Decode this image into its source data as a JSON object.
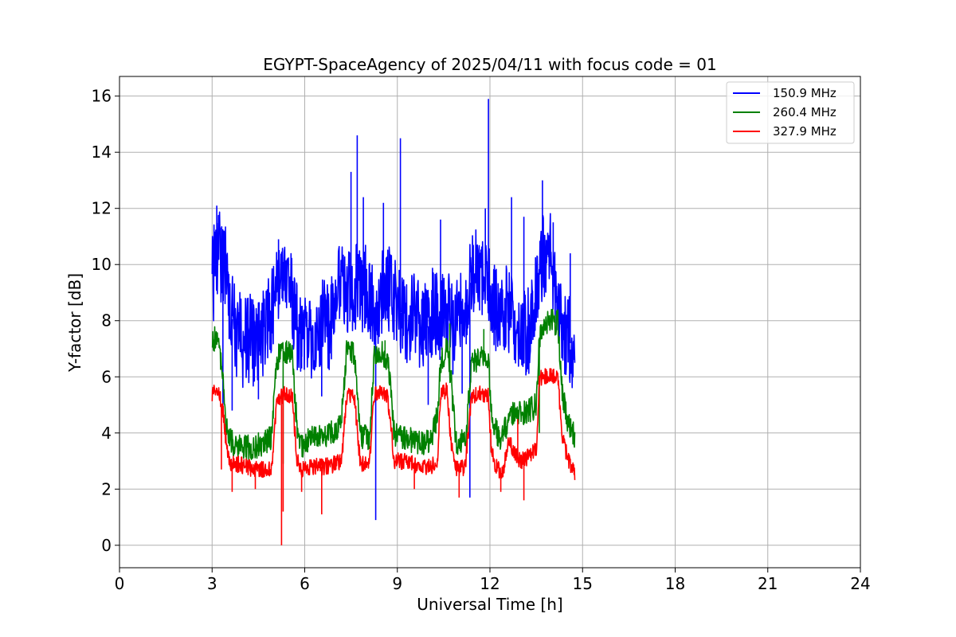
{
  "chart_data": {
    "type": "line",
    "title": "EGYPT-SpaceAgency of 2025/04/11 with focus code = 01",
    "xlabel": "Universal Time [h]",
    "ylabel": "Y-factor [dB]",
    "xlim": [
      0,
      24
    ],
    "ylim": [
      -0.8,
      16.7
    ],
    "xticks": [
      0,
      3,
      6,
      9,
      12,
      15,
      18,
      21,
      24
    ],
    "yticks": [
      0,
      2,
      4,
      6,
      8,
      10,
      12,
      14,
      16
    ],
    "grid": true,
    "legend_position": "top-right",
    "series": [
      {
        "name": "150.9 MHz",
        "color": "#0000ff",
        "points": [
          [
            3.0,
            10.2
          ],
          [
            3.05,
            9.5
          ],
          [
            3.1,
            11.2
          ],
          [
            3.15,
            10.0
          ],
          [
            3.2,
            10.6
          ],
          [
            3.3,
            9.8
          ],
          [
            3.4,
            10.3
          ],
          [
            3.5,
            8.8
          ],
          [
            3.6,
            8.3
          ],
          [
            3.7,
            7.8
          ],
          [
            3.8,
            7.4
          ],
          [
            3.9,
            7.6
          ],
          [
            4.0,
            7.2
          ],
          [
            4.2,
            7.4
          ],
          [
            4.4,
            7.1
          ],
          [
            4.6,
            7.3
          ],
          [
            4.8,
            7.9
          ],
          [
            5.0,
            8.4
          ],
          [
            5.2,
            9.6
          ],
          [
            5.4,
            9.3
          ],
          [
            5.6,
            8.8
          ],
          [
            5.8,
            7.6
          ],
          [
            6.0,
            7.2
          ],
          [
            6.2,
            7.4
          ],
          [
            6.4,
            7.6
          ],
          [
            6.6,
            7.9
          ],
          [
            6.8,
            7.7
          ],
          [
            7.0,
            8.6
          ],
          [
            7.2,
            9.5
          ],
          [
            7.4,
            8.8
          ],
          [
            7.6,
            9.4
          ],
          [
            7.8,
            8.9
          ],
          [
            8.0,
            9.2
          ],
          [
            8.2,
            8.6
          ],
          [
            8.4,
            8.7
          ],
          [
            8.6,
            9.6
          ],
          [
            8.8,
            8.9
          ],
          [
            9.0,
            8.4
          ],
          [
            9.2,
            8.2
          ],
          [
            9.4,
            7.9
          ],
          [
            9.6,
            8.3
          ],
          [
            9.8,
            7.7
          ],
          [
            10.0,
            7.8
          ],
          [
            10.2,
            8.5
          ],
          [
            10.4,
            8.0
          ],
          [
            10.6,
            8.6
          ],
          [
            10.8,
            7.6
          ],
          [
            11.0,
            8.2
          ],
          [
            11.2,
            8.6
          ],
          [
            11.4,
            9.6
          ],
          [
            11.6,
            10.1
          ],
          [
            11.8,
            9.5
          ],
          [
            12.0,
            8.9
          ],
          [
            12.2,
            8.5
          ],
          [
            12.4,
            8.7
          ],
          [
            12.6,
            8.2
          ],
          [
            12.8,
            7.9
          ],
          [
            13.0,
            7.7
          ],
          [
            13.2,
            7.4
          ],
          [
            13.4,
            8.4
          ],
          [
            13.6,
            9.7
          ],
          [
            13.8,
            10.6
          ],
          [
            14.0,
            10.2
          ],
          [
            14.2,
            8.8
          ],
          [
            14.4,
            7.7
          ],
          [
            14.6,
            7.2
          ],
          [
            14.75,
            7.0
          ]
        ],
        "spikes": [
          [
            3.15,
            12.1
          ],
          [
            3.35,
            4.9
          ],
          [
            3.65,
            4.8
          ],
          [
            4.5,
            5.2
          ],
          [
            5.15,
            10.9
          ],
          [
            5.9,
            6.3
          ],
          [
            6.55,
            5.3
          ],
          [
            7.5,
            13.3
          ],
          [
            7.7,
            14.6
          ],
          [
            7.9,
            12.4
          ],
          [
            8.3,
            0.9
          ],
          [
            8.55,
            12.2
          ],
          [
            9.1,
            14.5
          ],
          [
            10.0,
            5.0
          ],
          [
            10.4,
            11.6
          ],
          [
            11.1,
            5.4
          ],
          [
            11.35,
            1.7
          ],
          [
            11.85,
            12.0
          ],
          [
            11.95,
            15.9
          ],
          [
            12.7,
            12.4
          ],
          [
            13.1,
            11.7
          ],
          [
            13.7,
            13.0
          ],
          [
            14.05,
            11.5
          ],
          [
            14.6,
            10.4
          ]
        ]
      },
      {
        "name": "260.4 MHz",
        "color": "#008000",
        "points": [
          [
            3.0,
            7.4
          ],
          [
            3.2,
            7.3
          ],
          [
            3.35,
            6.0
          ],
          [
            3.45,
            4.4
          ],
          [
            3.55,
            3.8
          ],
          [
            3.7,
            3.6
          ],
          [
            4.0,
            3.5
          ],
          [
            4.3,
            3.5
          ],
          [
            4.6,
            3.6
          ],
          [
            4.9,
            3.8
          ],
          [
            5.1,
            6.6
          ],
          [
            5.3,
            7.0
          ],
          [
            5.6,
            6.8
          ],
          [
            5.75,
            4.2
          ],
          [
            5.9,
            3.5
          ],
          [
            6.2,
            3.8
          ],
          [
            6.6,
            3.9
          ],
          [
            7.0,
            4.1
          ],
          [
            7.2,
            4.6
          ],
          [
            7.35,
            6.9
          ],
          [
            7.6,
            6.8
          ],
          [
            7.8,
            3.9
          ],
          [
            8.1,
            3.8
          ],
          [
            8.25,
            6.7
          ],
          [
            8.5,
            6.9
          ],
          [
            8.7,
            6.6
          ],
          [
            8.9,
            3.9
          ],
          [
            9.3,
            3.8
          ],
          [
            9.6,
            3.7
          ],
          [
            9.9,
            3.6
          ],
          [
            10.1,
            3.8
          ],
          [
            10.3,
            4.6
          ],
          [
            10.4,
            6.5
          ],
          [
            10.6,
            7.0
          ],
          [
            10.75,
            5.8
          ],
          [
            10.9,
            3.6
          ],
          [
            11.2,
            3.7
          ],
          [
            11.4,
            6.4
          ],
          [
            11.7,
            6.8
          ],
          [
            11.95,
            6.6
          ],
          [
            12.05,
            4.6
          ],
          [
            12.3,
            3.8
          ],
          [
            12.6,
            4.4
          ],
          [
            12.8,
            4.8
          ],
          [
            13.0,
            4.7
          ],
          [
            13.3,
            4.8
          ],
          [
            13.5,
            5.0
          ],
          [
            13.6,
            7.4
          ],
          [
            13.9,
            8.0
          ],
          [
            14.2,
            7.9
          ],
          [
            14.35,
            5.4
          ],
          [
            14.5,
            4.5
          ],
          [
            14.75,
            3.9
          ]
        ],
        "spikes": [
          [
            5.3,
            2.9
          ],
          [
            8.6,
            7.3
          ],
          [
            10.7,
            7.9
          ],
          [
            11.8,
            7.7
          ],
          [
            14.2,
            8.4
          ],
          [
            13.6,
            4.0
          ]
        ]
      },
      {
        "name": "327.9 MHz",
        "color": "#ff0000",
        "points": [
          [
            3.0,
            5.4
          ],
          [
            3.2,
            5.5
          ],
          [
            3.35,
            4.8
          ],
          [
            3.5,
            3.2
          ],
          [
            3.6,
            2.9
          ],
          [
            3.8,
            2.9
          ],
          [
            4.1,
            2.8
          ],
          [
            4.4,
            2.7
          ],
          [
            4.7,
            2.7
          ],
          [
            4.95,
            2.8
          ],
          [
            5.1,
            5.2
          ],
          [
            5.4,
            5.4
          ],
          [
            5.6,
            5.3
          ],
          [
            5.75,
            3.0
          ],
          [
            5.9,
            2.7
          ],
          [
            6.2,
            2.8
          ],
          [
            6.6,
            2.8
          ],
          [
            7.0,
            2.9
          ],
          [
            7.2,
            3.0
          ],
          [
            7.35,
            5.3
          ],
          [
            7.6,
            5.4
          ],
          [
            7.8,
            2.9
          ],
          [
            8.1,
            2.9
          ],
          [
            8.25,
            5.4
          ],
          [
            8.5,
            5.5
          ],
          [
            8.7,
            5.2
          ],
          [
            8.9,
            3.0
          ],
          [
            9.2,
            3.0
          ],
          [
            9.5,
            2.9
          ],
          [
            9.8,
            2.8
          ],
          [
            10.1,
            2.8
          ],
          [
            10.3,
            3.1
          ],
          [
            10.4,
            5.4
          ],
          [
            10.6,
            5.5
          ],
          [
            10.75,
            3.5
          ],
          [
            10.9,
            2.7
          ],
          [
            11.2,
            2.8
          ],
          [
            11.4,
            5.3
          ],
          [
            11.7,
            5.4
          ],
          [
            11.95,
            5.3
          ],
          [
            12.05,
            3.3
          ],
          [
            12.2,
            2.8
          ],
          [
            12.4,
            2.5
          ],
          [
            12.6,
            3.8
          ],
          [
            12.8,
            3.3
          ],
          [
            13.0,
            3.0
          ],
          [
            13.3,
            3.2
          ],
          [
            13.5,
            3.4
          ],
          [
            13.6,
            5.9
          ],
          [
            13.9,
            6.1
          ],
          [
            14.2,
            5.9
          ],
          [
            14.35,
            3.8
          ],
          [
            14.5,
            3.2
          ],
          [
            14.75,
            2.5
          ]
        ],
        "spikes": [
          [
            5.25,
            0.0
          ],
          [
            5.3,
            1.2
          ],
          [
            3.3,
            2.7
          ],
          [
            3.65,
            1.9
          ],
          [
            4.4,
            2.0
          ],
          [
            5.9,
            1.9
          ],
          [
            6.55,
            1.1
          ],
          [
            9.55,
            2.0
          ],
          [
            11.0,
            1.7
          ],
          [
            12.35,
            1.9
          ],
          [
            13.1,
            1.6
          ],
          [
            12.9,
            4.5
          ]
        ]
      }
    ]
  }
}
